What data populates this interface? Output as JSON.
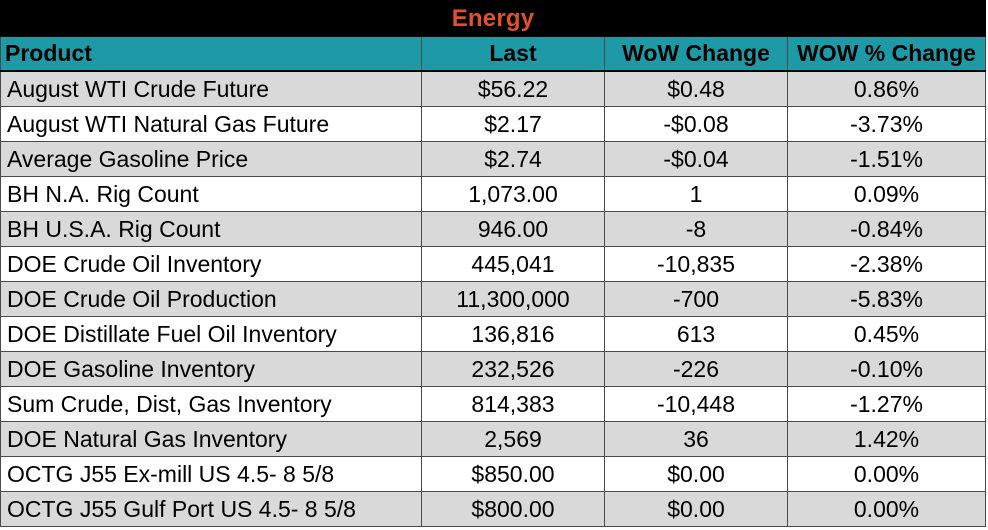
{
  "table": {
    "title": "Energy",
    "columns": [
      "Product",
      "Last",
      "WoW Change",
      "WOW % Change"
    ],
    "rows": [
      [
        "August WTI Crude Future",
        "$56.22",
        "$0.48",
        "0.86%"
      ],
      [
        "August WTI Natural Gas Future",
        "$2.17",
        "-$0.08",
        "-3.73%"
      ],
      [
        "Average Gasoline Price",
        "$2.74",
        "-$0.04",
        "-1.51%"
      ],
      [
        "BH N.A. Rig Count",
        "1,073.00",
        "1",
        "0.09%"
      ],
      [
        "BH U.S.A. Rig Count",
        "946.00",
        "-8",
        "-0.84%"
      ],
      [
        "DOE Crude Oil Inventory",
        "445,041",
        "-10,835",
        "-2.38%"
      ],
      [
        "DOE Crude Oil Production",
        "11,300,000",
        "-700",
        "-5.83%"
      ],
      [
        "DOE Distillate Fuel Oil Inventory",
        "136,816",
        "613",
        "0.45%"
      ],
      [
        "DOE Gasoline Inventory",
        "232,526",
        "-226",
        "-0.10%"
      ],
      [
        "Sum Crude, Dist, Gas Inventory",
        "814,383",
        "-10,448",
        "-1.27%"
      ],
      [
        "DOE Natural Gas Inventory",
        "2,569",
        "36",
        "1.42%"
      ],
      [
        "OCTG J55 Ex-mill US 4.5- 8 5/8",
        "$850.00",
        "$0.00",
        "0.00%"
      ],
      [
        "OCTG J55 Gulf Port US 4.5- 8 5/8",
        "$800.00",
        "$0.00",
        "0.00%"
      ]
    ]
  },
  "colors": {
    "title_bg": "#000000",
    "title_text": "#e2512c",
    "header_bg": "#1d9aa6",
    "row_alt_bg": "#d9d9d9",
    "row_plain_bg": "#ffffff"
  }
}
